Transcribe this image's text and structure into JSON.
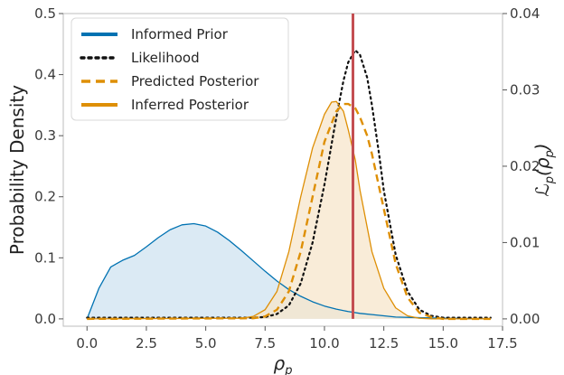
{
  "chart_data": {
    "type": "line",
    "title": "",
    "xlabel": "ρ_p",
    "ylabel": "Probability Density",
    "y2label": "ℒ_p(ρ_p)",
    "xlim": [
      -1,
      17.5
    ],
    "ylim": [
      -0.012,
      0.5
    ],
    "y2lim": [
      -0.00096,
      0.04
    ],
    "grid": false,
    "legend_position": "upper-left",
    "x_ticks": [
      "0.0",
      "2.5",
      "5.0",
      "7.5",
      "10.0",
      "12.5",
      "15.0",
      "17.5"
    ],
    "y_ticks": [
      "0.0",
      "0.1",
      "0.2",
      "0.3",
      "0.4",
      "0.5"
    ],
    "y2_ticks": [
      "0.00",
      "0.01",
      "0.02",
      "0.03",
      "0.04"
    ],
    "vertical_line": {
      "x": 11.2,
      "color": "#c44e52"
    },
    "series": [
      {
        "name": "Informed Prior",
        "style": "solid-filled",
        "color": "#0072b2",
        "fill": "#cfe3f0",
        "axis": "left",
        "x": [
          0,
          0.2,
          0.5,
          1.0,
          1.5,
          2.0,
          2.5,
          3.0,
          3.5,
          4.0,
          4.5,
          5.0,
          5.5,
          6.0,
          6.5,
          7.0,
          7.5,
          8.0,
          8.5,
          9.0,
          9.5,
          10.0,
          10.5,
          11.0,
          11.5,
          12.0,
          12.5,
          13.0,
          14.0,
          15.0,
          16.0,
          17.0
        ],
        "values": [
          0.0,
          0.02,
          0.05,
          0.085,
          0.096,
          0.104,
          0.118,
          0.133,
          0.146,
          0.154,
          0.156,
          0.152,
          0.142,
          0.128,
          0.112,
          0.095,
          0.078,
          0.062,
          0.048,
          0.037,
          0.028,
          0.021,
          0.016,
          0.012,
          0.009,
          0.007,
          0.005,
          0.003,
          0.002,
          0.001,
          0.0005,
          0.0
        ]
      },
      {
        "name": "Likelihood",
        "style": "dotted",
        "color": "#111111",
        "axis": "left",
        "x": [
          0,
          7.0,
          7.5,
          8.0,
          8.5,
          9.0,
          9.5,
          10.0,
          10.5,
          10.8,
          11.0,
          11.3,
          11.5,
          11.8,
          12.0,
          12.3,
          12.5,
          13.0,
          13.5,
          14.0,
          14.5,
          15.0,
          17.0
        ],
        "values": [
          0.002,
          0.002,
          0.003,
          0.008,
          0.022,
          0.058,
          0.125,
          0.22,
          0.33,
          0.39,
          0.42,
          0.44,
          0.432,
          0.395,
          0.35,
          0.27,
          0.21,
          0.105,
          0.045,
          0.015,
          0.005,
          0.002,
          0.002
        ]
      },
      {
        "name": "Predicted Posterior",
        "style": "dashed",
        "color": "#de8f05",
        "axis": "left",
        "x": [
          0,
          7.0,
          7.5,
          8.0,
          8.5,
          9.0,
          9.5,
          10.0,
          10.5,
          10.8,
          11.0,
          11.3,
          11.5,
          11.8,
          12.0,
          12.5,
          13.0,
          13.5,
          14.0,
          14.5,
          15.0,
          17.0
        ],
        "values": [
          0.0,
          0.001,
          0.004,
          0.015,
          0.045,
          0.11,
          0.2,
          0.29,
          0.34,
          0.352,
          0.352,
          0.345,
          0.33,
          0.3,
          0.27,
          0.18,
          0.09,
          0.035,
          0.01,
          0.003,
          0.0,
          0.0
        ]
      },
      {
        "name": "Inferred Posterior",
        "style": "solid-filled",
        "color": "#de8f05",
        "fill": "#f7e5cb",
        "axis": "left",
        "x": [
          0,
          6.5,
          7.0,
          7.5,
          8.0,
          8.5,
          9.0,
          9.5,
          10.0,
          10.3,
          10.5,
          10.8,
          11.0,
          11.3,
          11.5,
          12.0,
          12.5,
          13.0,
          13.5,
          14.0,
          14.5,
          15.0,
          17.0
        ],
        "values": [
          0.0,
          0.001,
          0.004,
          0.015,
          0.045,
          0.11,
          0.2,
          0.28,
          0.335,
          0.355,
          0.356,
          0.34,
          0.31,
          0.26,
          0.21,
          0.11,
          0.05,
          0.018,
          0.005,
          0.001,
          0.0,
          0.0,
          0.0
        ]
      }
    ]
  }
}
